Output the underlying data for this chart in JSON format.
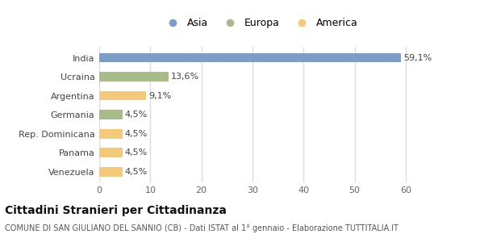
{
  "categories": [
    "Venezuela",
    "Panama",
    "Rep. Dominicana",
    "Germania",
    "Argentina",
    "Ucraina",
    "India"
  ],
  "values": [
    4.5,
    4.5,
    4.5,
    4.5,
    9.1,
    13.6,
    59.1
  ],
  "colors": [
    "#f5c97a",
    "#f5c97a",
    "#f5c97a",
    "#a8bc8a",
    "#f5c97a",
    "#a8bc8a",
    "#7b9dc8"
  ],
  "labels": [
    "4,5%",
    "4,5%",
    "4,5%",
    "4,5%",
    "9,1%",
    "13,6%",
    "59,1%"
  ],
  "legend": [
    {
      "label": "Asia",
      "color": "#7b9dc8"
    },
    {
      "label": "Europa",
      "color": "#a8bc8a"
    },
    {
      "label": "America",
      "color": "#f5c97a"
    }
  ],
  "xlim": [
    0,
    63
  ],
  "xticks": [
    0,
    10,
    20,
    30,
    40,
    50,
    60
  ],
  "title_main": "Cittadini Stranieri per Cittadinanza",
  "title_sub": "COMUNE DI SAN GIULIANO DEL SANNIO (CB) - Dati ISTAT al 1° gennaio - Elaborazione TUTTITALIA.IT",
  "background_color": "#ffffff",
  "bar_height": 0.5,
  "label_fontsize": 8,
  "tick_fontsize": 8,
  "ylabel_fontsize": 8,
  "title_main_fontsize": 10,
  "title_sub_fontsize": 7
}
